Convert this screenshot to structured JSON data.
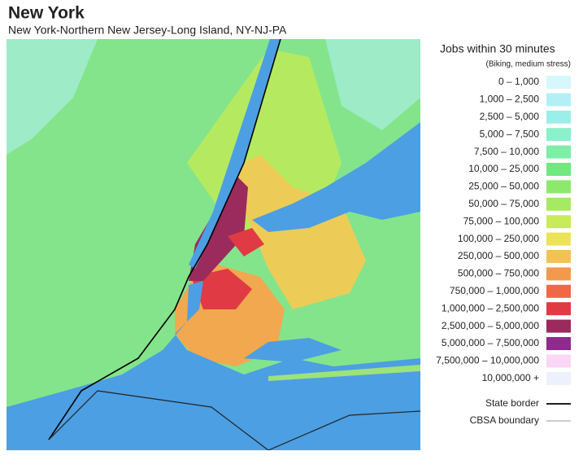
{
  "header": {
    "title": "New York",
    "subtitle": "New York-Northern New Jersey-Long Island, NY-NJ-PA"
  },
  "legend": {
    "title": "Jobs within 30 minutes",
    "subtitle": "(Biking, medium stress)",
    "items": [
      {
        "label": "0 – 1,000",
        "color": "#d6f7fb"
      },
      {
        "label": "1,000 – 2,500",
        "color": "#b2f0f6"
      },
      {
        "label": "2,500 – 5,000",
        "color": "#9cefe8"
      },
      {
        "label": "5,000 – 7,500",
        "color": "#8cf0cb"
      },
      {
        "label": "7,500 – 10,000",
        "color": "#7cee a6"
      },
      {
        "label": "10,000 – 25,000",
        "color": "#70e97f"
      },
      {
        "label": "25,000 – 50,000",
        "color": "#8ce96c"
      },
      {
        "label": "50,000 – 75,000",
        "color": "#a6e962"
      },
      {
        "label": "75,000 – 100,000",
        "color": "#c7eb59"
      },
      {
        "label": "100,000 – 250,000",
        "color": "#ebe459"
      },
      {
        "label": "250,000 – 500,000",
        "color": "#f3c255"
      },
      {
        "label": "500,000 – 750,000",
        "color": "#f2994e"
      },
      {
        "label": "750,000 – 1,000,000",
        "color": "#ef6947"
      },
      {
        "label": "1,000,000 – 2,500,000",
        "color": "#e03a45"
      },
      {
        "label": "2,500,000 – 5,000,000",
        "color": "#9b2b5c"
      },
      {
        "label": "5,000,000 – 7,500,000",
        "color": "#8d2b8e"
      },
      {
        "label": "7,500,000 – 10,000,000",
        "color": "#fad7f5"
      },
      {
        "label": "10,000,000 +",
        "color": "#edf1fb"
      }
    ],
    "lines": [
      {
        "label": "State border",
        "color": "#000000"
      },
      {
        "label": "CBSA boundary",
        "color": "#9a9a9a"
      }
    ]
  }
}
